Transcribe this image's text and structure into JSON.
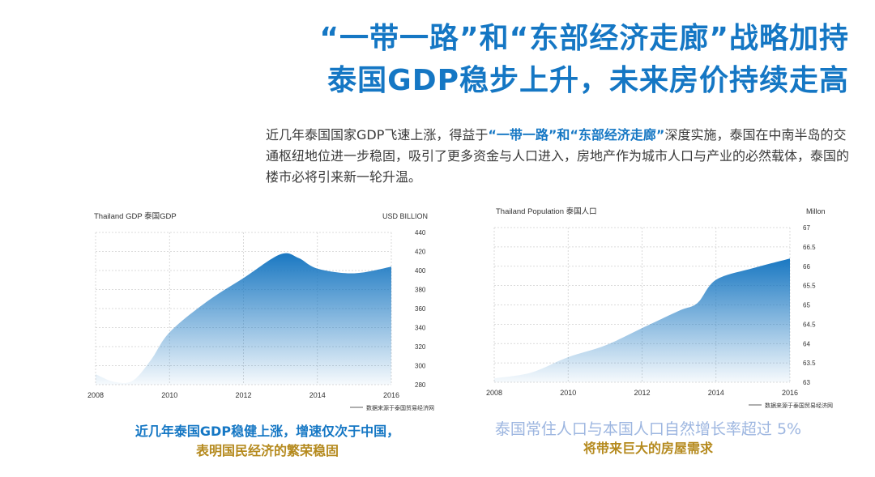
{
  "header": {
    "title_line1": "“一带一路”和“东部经济走廊”战略加持",
    "title_line2": "泰国GDP稳步上升，未来房价持续走高"
  },
  "intro": {
    "part1": "近几年泰国国家GDP飞速上涨，得益于",
    "highlight": "“一带一路”和“东部经济走廊”",
    "part2": "深度实施，泰国在中南半岛的交通枢纽地位进一步稳固，吸引了更多资金与人口进入，房地产作为城市人口与产业的必然载体，泰国的楼市必将引来新一轮升温。"
  },
  "chart_data": [
    {
      "type": "area",
      "title": "Thailand GDP  泰国GDP",
      "unit_label": "USD  BILLION",
      "source": "数据来源于泰国贸易经济网",
      "x_ticks": [
        "2008",
        "2010",
        "2012",
        "2014",
        "2016"
      ],
      "y_ticks": [
        "440",
        "420",
        "400",
        "380",
        "360",
        "340",
        "320",
        "300",
        "280"
      ],
      "ylim": [
        280,
        440
      ],
      "xlim": [
        2008,
        2016
      ],
      "grid": true,
      "color": "#1a78c2",
      "x": [
        2008,
        2008.5,
        2009,
        2009.5,
        2010,
        2011,
        2012,
        2013,
        2013.5,
        2014,
        2015,
        2016
      ],
      "values": [
        291,
        283,
        284,
        306,
        335,
        367,
        392,
        417,
        413,
        402,
        397,
        404
      ]
    },
    {
      "type": "area",
      "title": "Thailand Population  泰国人口",
      "unit_label": "Millon",
      "source": "数据来源于泰国贸易经济网",
      "x_ticks": [
        "2008",
        "2010",
        "2012",
        "2014",
        "2016"
      ],
      "y_ticks": [
        "67",
        "66.5",
        "66",
        "65.5",
        "65",
        "64.5",
        "64",
        "63.5",
        "63"
      ],
      "ylim": [
        63,
        67
      ],
      "xlim": [
        2008,
        2016
      ],
      "grid": true,
      "color": "#1a78c2",
      "x": [
        2008,
        2009,
        2010,
        2011,
        2012,
        2013,
        2013.5,
        2014,
        2015,
        2016
      ],
      "values": [
        63.1,
        63.25,
        63.65,
        63.95,
        64.4,
        64.85,
        65.05,
        65.65,
        65.95,
        66.2
      ]
    }
  ],
  "captions": {
    "gdp_line1": "近几年泰国GDP稳健上涨，增速仅次于中国，",
    "gdp_line2": "表明国民经济的繁荣稳固",
    "pop_line1": "泰国常住人口与本国人口自然增长率超过  5%",
    "pop_line2": "将带来巨大的房屋需求"
  }
}
